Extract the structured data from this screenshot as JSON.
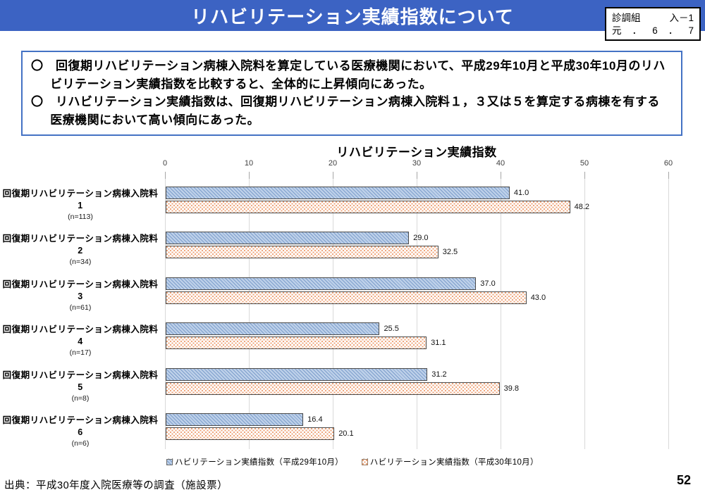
{
  "header": {
    "title": "リハビリテーション実績指数について",
    "stamp_rows": [
      [
        "診調組",
        "入－1"
      ],
      [
        "元",
        "．",
        "6",
        "．",
        "7"
      ]
    ]
  },
  "summary": {
    "bullets": [
      "〇　回復期リハビリテーション病棟入院料を算定している医療機関において、平成29年10月と平成30年10月のリハビリテーション実績指数を比較すると、全体的に上昇傾向にあった。",
      "〇　リハビリテーション実績指数は、回復期リハビリテーション病棟入院料１，３又は５を算定する病棟を有する医療機関において高い傾向にあった。"
    ]
  },
  "chart_data": {
    "type": "bar",
    "orientation": "horizontal",
    "title": "リハビリテーション実績指数",
    "categories": [
      "回復期リハビリテーション病棟入院料1",
      "回復期リハビリテーション病棟入院料2",
      "回復期リハビリテーション病棟入院料3",
      "回復期リハビリテーション病棟入院料4",
      "回復期リハビリテーション病棟入院料5",
      "回復期リハビリテーション病棟入院料6"
    ],
    "category_n": [
      "(n=113)",
      "(n=34)",
      "(n=61)",
      "(n=17)",
      "(n=8)",
      "(n=6)"
    ],
    "series": [
      {
        "name": "リハビリテーション実績指数（平成29年10月）",
        "values": [
          41.0,
          29.0,
          37.0,
          25.5,
          31.2,
          16.4
        ]
      },
      {
        "name": "リハビリテーション実績指数（平成30年10月）",
        "values": [
          48.2,
          32.5,
          43.0,
          31.1,
          39.8,
          20.1
        ]
      }
    ],
    "xlim": [
      0,
      60
    ],
    "xticks": [
      0,
      10,
      20,
      30,
      40,
      50,
      60
    ],
    "grid": true,
    "legend_position": "bottom",
    "value_labels": true
  },
  "footer": {
    "source": "出典：平成30年度入院医療等の調査（施設票）",
    "page_number": "52"
  },
  "colors": {
    "title_bar": "#3C63C3",
    "summary_box_border": "#4472C4",
    "series1_fill": "#BDD0E9",
    "series1_hatch": "#7E9FCC",
    "series2_dot": "#EFA77E",
    "bar_border": "#4A4A4A",
    "gridline": "#D9D9D9"
  }
}
